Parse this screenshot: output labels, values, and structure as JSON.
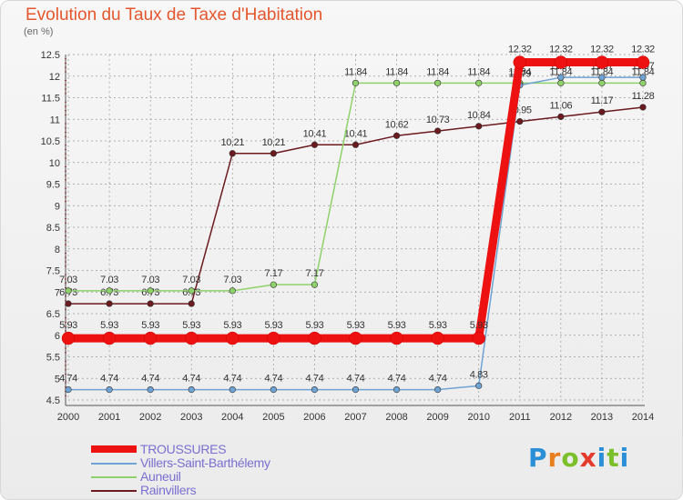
{
  "title": "Evolution du Taux de Taxe d'Habitation",
  "unit_label": "(en %)",
  "logo_text": "Proxiti",
  "colors": {
    "title": "#e4572e",
    "axis_text": "#333333",
    "grid": "#9a9a9a",
    "tick_red": "#e02020",
    "legend_text": "#7a6fd0"
  },
  "chart_data": {
    "type": "line",
    "x": [
      2000,
      2001,
      2002,
      2003,
      2004,
      2005,
      2006,
      2007,
      2008,
      2009,
      2010,
      2011,
      2012,
      2013,
      2014
    ],
    "ylim": [
      4.5,
      12.5
    ],
    "yticks": [
      4.5,
      5,
      5.5,
      6,
      6.5,
      7,
      7.5,
      8,
      8.5,
      9,
      9.5,
      10,
      10.5,
      11,
      11.5,
      12,
      12.5
    ],
    "ytick_labels": [
      "4.5",
      "5",
      "5.5",
      "6",
      "6.5",
      "7",
      "7.5",
      "8",
      "8.5",
      "9",
      "9.5",
      "10",
      "10.5",
      "11",
      "11.5",
      "12",
      "12.5"
    ],
    "grid": true,
    "legend_position": "bottom-left",
    "series": [
      {
        "name": "Rainvillers",
        "color": "#6b1a1f",
        "thick": false,
        "values": [
          6.73,
          6.73,
          6.73,
          6.73,
          10.21,
          10.21,
          10.41,
          10.41,
          10.62,
          10.73,
          10.84,
          10.95,
          11.06,
          11.17,
          11.28
        ],
        "labels": [
          "6.73",
          "6.73",
          "6.73",
          "6.73",
          "10.21",
          "10.21",
          "10.41",
          "10.41",
          "10.62",
          "10.73",
          "10.84",
          "10.95",
          "11.06",
          "11.17",
          "11.28"
        ]
      },
      {
        "name": "Auneuil",
        "color": "#8fd16a",
        "thick": false,
        "values": [
          7.03,
          7.03,
          7.03,
          7.03,
          7.03,
          7.17,
          7.17,
          11.84,
          11.84,
          11.84,
          11.84,
          11.84,
          11.84,
          11.84,
          11.84
        ],
        "labels": [
          "7.03",
          "7.03",
          "7.03",
          "7.03",
          "7.03",
          "7.17",
          "7.17",
          "11.84",
          "11.84",
          "11.84",
          "11.84",
          "11.84",
          "11.84",
          "11.84",
          "11.84"
        ]
      },
      {
        "name": "Villers-Saint-Barthélemy",
        "color": "#6fa3d3",
        "thick": false,
        "values": [
          4.74,
          4.74,
          4.74,
          4.74,
          4.74,
          4.74,
          4.74,
          4.74,
          4.74,
          4.74,
          4.83,
          11.79,
          11.97,
          11.97,
          11.97
        ],
        "labels": [
          "4.74",
          "4.74",
          "4.74",
          "4.74",
          "4.74",
          "4.74",
          "4.74",
          "4.74",
          "4.74",
          "4.74",
          "4.83",
          "11.79",
          "11.97",
          "11.97",
          "11.97"
        ]
      },
      {
        "name": "TROUSSURES",
        "color": "#ee1111",
        "thick": true,
        "values": [
          5.93,
          5.93,
          5.93,
          5.93,
          5.93,
          5.93,
          5.93,
          5.93,
          5.93,
          5.93,
          5.93,
          12.32,
          12.32,
          12.32,
          12.32
        ],
        "labels": [
          "5.93",
          "5.93",
          "5.93",
          "5.93",
          "5.93",
          "5.93",
          "5.93",
          "5.93",
          "5.93",
          "5.93",
          "5.93",
          "12.32",
          "12.32",
          "12.32",
          "12.32"
        ]
      }
    ],
    "legend": [
      {
        "name": "TROUSSURES",
        "color": "#ee1111",
        "thick": true
      },
      {
        "name": "Villers-Saint-Barthélemy",
        "color": "#6fa3d3",
        "thick": false
      },
      {
        "name": "Auneuil",
        "color": "#8fd16a",
        "thick": false
      },
      {
        "name": "Rainvillers",
        "color": "#6b1a1f",
        "thick": false
      }
    ]
  }
}
